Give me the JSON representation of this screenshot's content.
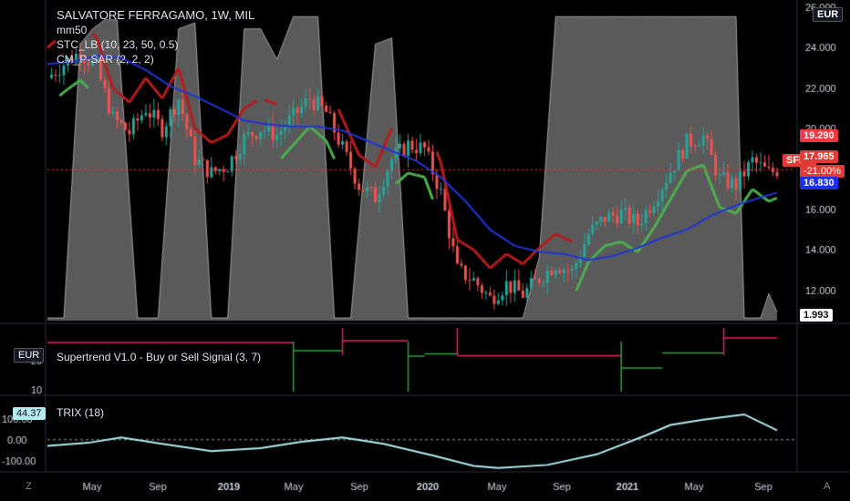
{
  "header": {
    "title": "SALVATORE FERRAGAMO, 1W, MIL",
    "currency_button": "EUR",
    "indicators": [
      "mm50",
      "STC_LB (10, 23, 50, 0.5)",
      "CM_P-SAR (2, 2, 2)"
    ]
  },
  "price_axis": {
    "ticks": [
      "26.000",
      "24.000",
      "22.000",
      "20.000",
      "18.000",
      "16.000",
      "14.000",
      "12.000"
    ],
    "labels": {
      "red_level": "19.290",
      "symbol": "SFER",
      "last_price": "17.965",
      "change": "-21.00%",
      "blue_level": "16.830",
      "stc_value": "1.993"
    },
    "current_price": 17.965
  },
  "supertrend_pane": {
    "title": "Supertrend V1.0 - Buy or Sell Signal (3, 7)",
    "currency": "EUR",
    "ticks": [
      "20",
      "10"
    ]
  },
  "trix_pane": {
    "title": "TRIX (18)",
    "value_label": "44.37",
    "ticks": [
      "100.00",
      "0.00",
      "-100.00"
    ]
  },
  "time_axis": {
    "labels": [
      "May",
      "Sep",
      "2019",
      "May",
      "Sep",
      "2020",
      "May",
      "Sep",
      "2021",
      "May",
      "Sep"
    ]
  },
  "footer": {
    "left_button": "Z",
    "right_button": "A"
  },
  "colors": {
    "background": "#000000",
    "stc_fill": "#c8c8c8",
    "candle_up": "#26a69a",
    "candle_down": "#ef5350",
    "psar_bull": "#4caf50",
    "psar_bear": "#b71c1c",
    "mm50": "#1f35d6",
    "supertrend_up": "#2ea043",
    "supertrend_down": "#e91e63",
    "trix": "#b2ebf2",
    "tag_red": "#f23645",
    "tag_blue": "#1e2ee8"
  },
  "chart_data": {
    "type": "line",
    "title": "SALVATORE FERRAGAMO, 1W, MIL",
    "y_range": [
      10.5,
      26
    ],
    "x_labels": [
      "May",
      "Sep",
      "2019",
      "May",
      "Sep",
      "2020",
      "May",
      "Sep",
      "2021",
      "May",
      "Sep"
    ],
    "series": [
      {
        "name": "mm50",
        "x": [
          0,
          6,
          12,
          18,
          24,
          30,
          36,
          42,
          48,
          54,
          60,
          66,
          72,
          78,
          84,
          90,
          96,
          102,
          108,
          114,
          120,
          126,
          132,
          138,
          144,
          150,
          156,
          162,
          168,
          174,
          178
        ],
        "values": [
          23.2,
          23.3,
          23.6,
          23.5,
          22.9,
          22.1,
          21.6,
          21.0,
          20.4,
          20.2,
          20.1,
          20.1,
          19.9,
          19.4,
          18.9,
          18.4,
          17.6,
          16.4,
          15.0,
          14.2,
          13.9,
          13.8,
          13.5,
          13.7,
          14.1,
          14.6,
          15.0,
          15.7,
          16.2,
          16.6,
          16.83
        ]
      },
      {
        "name": "close",
        "x": [
          0,
          4,
          8,
          12,
          16,
          20,
          24,
          28,
          32,
          36,
          40,
          44,
          48,
          52,
          56,
          60,
          64,
          68,
          72,
          76,
          80,
          84,
          88,
          92,
          96,
          100,
          104,
          108,
          112,
          116,
          120,
          124,
          128,
          132,
          136,
          140,
          144,
          148,
          152,
          156,
          160,
          164,
          168,
          172,
          176,
          178
        ],
        "values": [
          22.5,
          23.2,
          23.8,
          23.0,
          20.5,
          19.8,
          21.0,
          20.0,
          21.5,
          18.5,
          17.8,
          18.2,
          19.5,
          20.0,
          19.7,
          20.6,
          21.5,
          20.8,
          19.0,
          17.2,
          16.6,
          18.5,
          19.2,
          19.0,
          16.8,
          13.0,
          12.5,
          11.6,
          12.3,
          11.8,
          12.6,
          13.3,
          12.9,
          14.8,
          15.6,
          15.8,
          15.3,
          16.5,
          17.9,
          19.3,
          19.6,
          17.5,
          17.2,
          18.4,
          17.8,
          17.965
        ]
      },
      {
        "name": "STC_LB",
        "x": [
          0,
          4,
          8,
          11,
          14,
          17,
          22,
          27,
          32,
          36,
          40,
          44,
          48,
          52,
          56,
          60,
          66,
          70,
          74,
          80,
          84,
          88,
          92,
          96,
          100,
          104,
          108,
          112,
          116,
          120,
          124,
          128,
          132,
          136,
          140,
          144,
          148,
          152,
          156,
          160,
          164,
          168,
          170,
          172,
          174,
          176,
          178
        ],
        "values": [
          0,
          0,
          90,
          95,
          98,
          98,
          0,
          0,
          95,
          97,
          0,
          0,
          95,
          95,
          85,
          99,
          99,
          0,
          0,
          90,
          92,
          0,
          0,
          0,
          0,
          0,
          0,
          0,
          0,
          20,
          99,
          99,
          99,
          99,
          99,
          99,
          99,
          99,
          99,
          99,
          99,
          99,
          0,
          0,
          0,
          8,
          1.993
        ]
      }
    ]
  }
}
